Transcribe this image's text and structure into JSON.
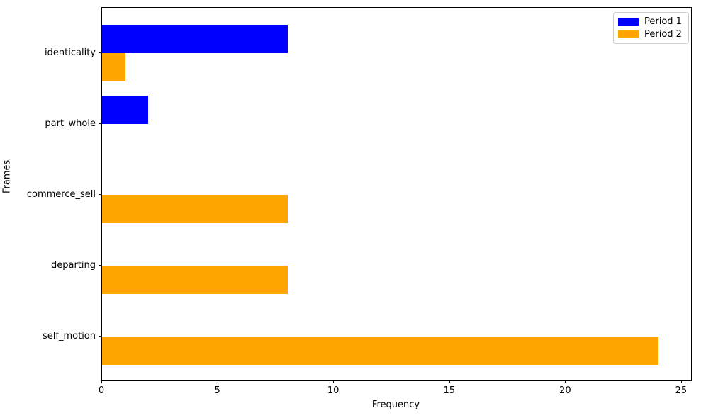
{
  "chart_data": {
    "type": "bar",
    "orientation": "horizontal",
    "title": "",
    "xlabel": "Frequency",
    "ylabel": "Frames",
    "categories": [
      "identicality",
      "part_whole",
      "commerce_sell",
      "departing",
      "self_motion"
    ],
    "series": [
      {
        "name": "Period 1",
        "color": "#0000ff",
        "values": [
          8,
          2,
          0,
          0,
          0
        ]
      },
      {
        "name": "Period 2",
        "color": "#ffa500",
        "values": [
          1,
          0,
          8,
          8,
          24
        ]
      }
    ],
    "xticks": [
      0,
      5,
      10,
      15,
      20,
      25
    ],
    "xlim": [
      0,
      25.4
    ],
    "bar_group_layout": "Period 1 bar drawn above the category tick, Period 2 bar below it",
    "legend_position": "upper right",
    "grid": false,
    "background_color": "#ffffff",
    "axis_color": "#000000"
  }
}
